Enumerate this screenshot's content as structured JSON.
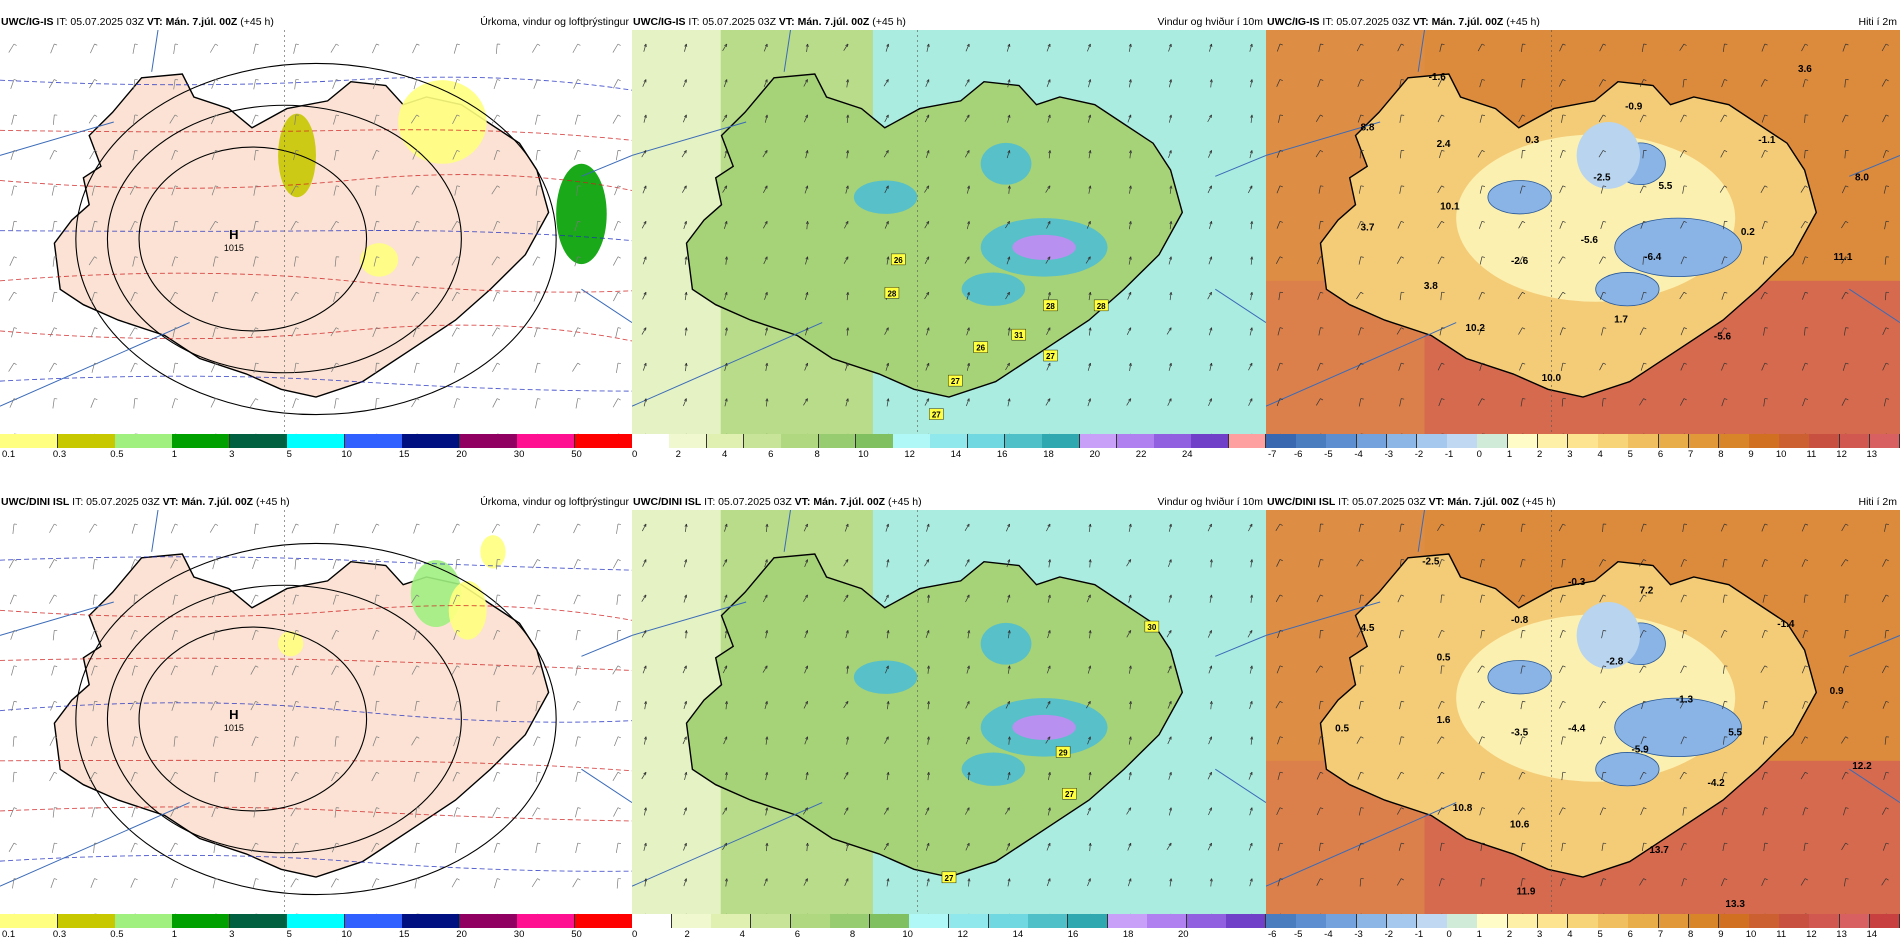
{
  "panels": [
    {
      "id": "ig-precip",
      "type": "precip",
      "model": "UWC/IG-IS",
      "it": "05.07.2025 03Z",
      "vt": "Mán. 7.júl. 00Z",
      "lead": "(+45 h)",
      "field": "Úrkoma, vindur og loftþrýstingur",
      "pressure_center": {
        "letter": "H",
        "value": "1015"
      },
      "colorbar": {
        "colors": [
          "#ffff80",
          "#c8c800",
          "#a0f080",
          "#00a000",
          "#006040",
          "#00ffff",
          "#3060ff",
          "#001080",
          "#900060",
          "#ff1090",
          "#ff0000"
        ],
        "labels": [
          "0.1",
          "0.3",
          "0.5",
          "1",
          "3",
          "5",
          "10",
          "15",
          "20",
          "30",
          "50"
        ]
      }
    },
    {
      "id": "ig-wind",
      "type": "wind",
      "model": "UWC/IG-IS",
      "it": "05.07.2025 03Z",
      "vt": "Mán. 7.júl. 00Z",
      "lead": "(+45 h)",
      "field": "Vindur og hviður í 10m",
      "gusts": [
        "26",
        "28",
        "28",
        "31",
        "28",
        "26",
        "27",
        "27",
        "27"
      ],
      "colorbar": {
        "colors": [
          "#ffffff",
          "#f0f8d0",
          "#e0f0b0",
          "#c8e498",
          "#b0d880",
          "#98cc70",
          "#80c060",
          "#b0f8f8",
          "#90e8ec",
          "#70d8e0",
          "#50c0c8",
          "#30a8b0",
          "#c8a0f8",
          "#b080f0",
          "#9060e0",
          "#7040c8",
          "#ffa0a0"
        ],
        "labels": [
          "0",
          "2",
          "4",
          "6",
          "8",
          "10",
          "12",
          "14",
          "16",
          "18",
          "20",
          "22",
          "24"
        ]
      }
    },
    {
      "id": "ig-temp",
      "type": "temp",
      "model": "UWC/IG-IS",
      "it": "05.07.2025 03Z",
      "vt": "Mán. 7.júl. 00Z",
      "lead": "(+45 h)",
      "field": "Hiti í 2m",
      "values": [
        "-1.6",
        "3.6",
        "8.8",
        "2.4",
        "-0.9",
        "0.3",
        "-1.1",
        "-2.5",
        "5.5",
        "8.0",
        "10.1",
        "3.7",
        "-5.6",
        "0.2",
        "-2.6",
        "-6.4",
        "11.1",
        "3.8",
        "10.2",
        "1.7",
        "-5.6",
        "10.0"
      ],
      "colorbar": {
        "colors": [
          "#3a68b0",
          "#4a7cc0",
          "#5c8ed0",
          "#74a2dc",
          "#8cb6e6",
          "#a4c8ee",
          "#c0d8f2",
          "#d0ecd8",
          "#fffcc8",
          "#fff0a8",
          "#fce490",
          "#f8d478",
          "#f0c060",
          "#e8ac48",
          "#e09838",
          "#d88428",
          "#d07020",
          "#cc6030",
          "#c85040",
          "#d05850",
          "#d86060"
        ],
        "labels": [
          "-7",
          "-6",
          "-5",
          "-4",
          "-3",
          "-2",
          "-1",
          "0",
          "1",
          "2",
          "3",
          "4",
          "5",
          "6",
          "7",
          "8",
          "9",
          "10",
          "11",
          "12",
          "13"
        ]
      }
    },
    {
      "id": "dini-precip",
      "type": "precip",
      "model": "UWC/DINI ISL",
      "it": "05.07.2025 03Z",
      "vt": "Mán. 7.júl. 00Z",
      "lead": "(+45 h)",
      "field": "Úrkoma, vindur og loftþrýstingur",
      "pressure_center": {
        "letter": "H",
        "value": "1015"
      },
      "colorbar": {
        "colors": [
          "#ffff80",
          "#c8c800",
          "#a0f080",
          "#00a000",
          "#006040",
          "#00ffff",
          "#3060ff",
          "#001080",
          "#900060",
          "#ff1090",
          "#ff0000"
        ],
        "labels": [
          "0.1",
          "0.3",
          "0.5",
          "1",
          "3",
          "5",
          "10",
          "15",
          "20",
          "30",
          "50"
        ]
      }
    },
    {
      "id": "dini-wind",
      "type": "wind",
      "model": "UWC/DINI ISL",
      "it": "05.07.2025 03Z",
      "vt": "Mán. 7.júl. 00Z",
      "lead": "(+45 h)",
      "field": "Vindur og hviður í 10m",
      "gusts": [
        "30",
        "29",
        "27",
        "27"
      ],
      "colorbar": {
        "colors": [
          "#ffffff",
          "#f0f8d0",
          "#e0f0b0",
          "#c8e498",
          "#b0d880",
          "#98cc70",
          "#80c060",
          "#b0f8f8",
          "#90e8ec",
          "#70d8e0",
          "#50c0c8",
          "#30a8b0",
          "#c8a0f8",
          "#b080f0",
          "#9060e0",
          "#7040c8"
        ],
        "labels": [
          "0",
          "2",
          "4",
          "6",
          "8",
          "10",
          "12",
          "14",
          "16",
          "18",
          "20"
        ]
      }
    },
    {
      "id": "dini-temp",
      "type": "temp",
      "model": "UWC/DINI ISL",
      "it": "05.07.2025 03Z",
      "vt": "Mán. 7.júl. 00Z",
      "lead": "(+45 h)",
      "field": "Hiti í 2m",
      "values": [
        "-2.5",
        "-0.3",
        "7.2",
        "4.5",
        "-0.8",
        "-1.4",
        "0.5",
        "-2.8",
        "0.9",
        "-1.3",
        "1.6",
        "0.5",
        "-3.5",
        "-4.4",
        "5.5",
        "-5.9",
        "12.2",
        "-4.2",
        "10.8",
        "10.6",
        "13.7",
        "11.9",
        "13.3"
      ],
      "colorbar": {
        "colors": [
          "#4a7cc0",
          "#5c8ed0",
          "#74a2dc",
          "#8cb6e6",
          "#a4c8ee",
          "#c0d8f2",
          "#d0ecd8",
          "#fffcc8",
          "#fff0a8",
          "#fce490",
          "#f8d478",
          "#f0c060",
          "#e8ac48",
          "#e09838",
          "#d88428",
          "#d07020",
          "#cc6030",
          "#c85040",
          "#d05850",
          "#d86060",
          "#c84040"
        ],
        "labels": [
          "-6",
          "-5",
          "-4",
          "-3",
          "-2",
          "-1",
          "0",
          "1",
          "2",
          "3",
          "4",
          "5",
          "6",
          "7",
          "8",
          "9",
          "10",
          "11",
          "12",
          "13",
          "14"
        ]
      }
    }
  ]
}
